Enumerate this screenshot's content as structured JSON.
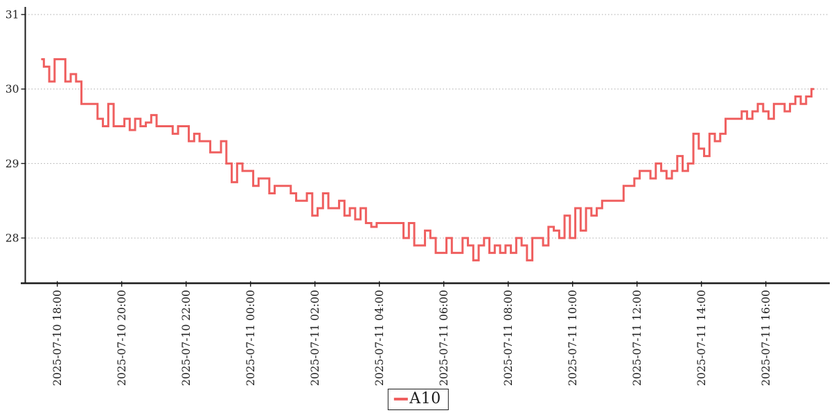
{
  "chart_data": {
    "type": "line",
    "title": "",
    "line_style": "step",
    "grid": "horizontal-dotted",
    "legend_position": "bottom-center",
    "colors": {
      "series": "#ef5f5f",
      "axis": "#1a1a1a",
      "gridline": "#aaaaaa",
      "tick_text": "#222222",
      "background": "#ffffff"
    },
    "x_axis": {
      "start_time": "2025-07-10 17:30",
      "interval_minutes": 10,
      "tick_labels": [
        "2025-07-10 18:00",
        "2025-07-10 20:00",
        "2025-07-10 22:00",
        "2025-07-11 00:00",
        "2025-07-11 02:00",
        "2025-07-11 04:00",
        "2025-07-11 06:00",
        "2025-07-11 08:00",
        "2025-07-11 10:00",
        "2025-07-11 12:00",
        "2025-07-11 14:00",
        "2025-07-11 16:00"
      ],
      "first_tick_point_index": 3,
      "points_per_tick": 12
    },
    "y_axis": {
      "tick_labels": [
        "31",
        "30",
        "29",
        "28"
      ],
      "range": [
        27.42,
        31.07
      ]
    },
    "series": [
      {
        "name": "A10",
        "color": "#ef5f5f",
        "values": [
          30.4,
          30.3,
          30.1,
          30.4,
          30.4,
          30.1,
          30.2,
          30.1,
          29.8,
          29.8,
          29.8,
          29.6,
          29.5,
          29.8,
          29.5,
          29.5,
          29.6,
          29.45,
          29.6,
          29.5,
          29.55,
          29.65,
          29.5,
          29.5,
          29.5,
          29.4,
          29.5,
          29.5,
          29.3,
          29.4,
          29.3,
          29.3,
          29.15,
          29.15,
          29.3,
          29.0,
          28.75,
          29.0,
          28.9,
          28.9,
          28.7,
          28.8,
          28.8,
          28.6,
          28.7,
          28.7,
          28.7,
          28.6,
          28.5,
          28.5,
          28.6,
          28.3,
          28.4,
          28.6,
          28.4,
          28.4,
          28.5,
          28.3,
          28.4,
          28.25,
          28.4,
          28.2,
          28.15,
          28.2,
          28.2,
          28.2,
          28.2,
          28.2,
          28.0,
          28.2,
          27.9,
          27.9,
          28.1,
          28.0,
          27.8,
          27.8,
          28.0,
          27.8,
          27.8,
          28.0,
          27.9,
          27.7,
          27.9,
          28.0,
          27.8,
          27.9,
          27.8,
          27.9,
          27.8,
          28.0,
          27.9,
          27.7,
          28.0,
          28.0,
          27.9,
          28.15,
          28.1,
          28.0,
          28.3,
          28.0,
          28.4,
          28.1,
          28.4,
          28.3,
          28.4,
          28.5,
          28.5,
          28.5,
          28.5,
          28.7,
          28.7,
          28.8,
          28.9,
          28.9,
          28.8,
          29.0,
          28.9,
          28.8,
          28.9,
          29.1,
          28.9,
          29.0,
          29.4,
          29.2,
          29.1,
          29.4,
          29.3,
          29.4,
          29.6,
          29.6,
          29.6,
          29.7,
          29.6,
          29.7,
          29.8,
          29.7,
          29.6,
          29.8,
          29.8,
          29.7,
          29.8,
          29.9,
          29.8,
          29.9,
          30.0
        ]
      }
    ]
  },
  "legend": {
    "items": [
      {
        "label": "A10",
        "marker_color": "#ef5f5f"
      }
    ]
  }
}
